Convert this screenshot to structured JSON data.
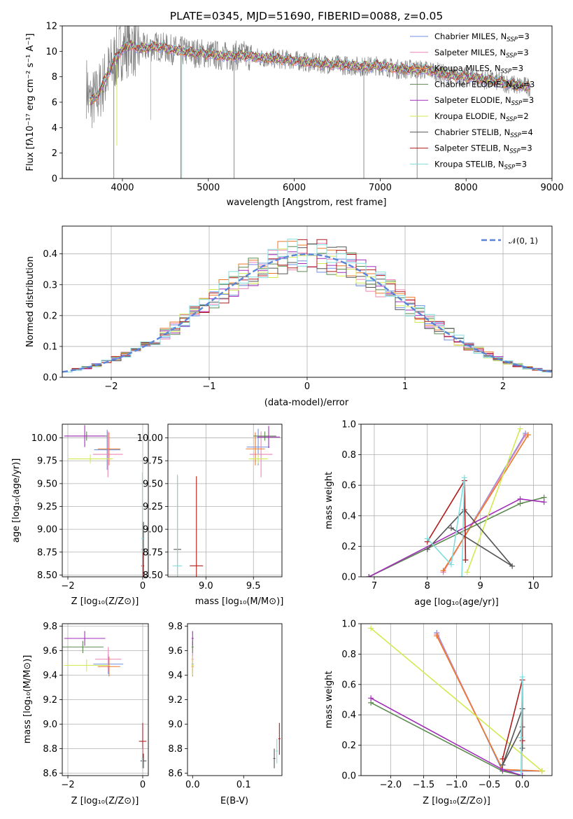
{
  "title": "PLATE=0345, MJD=51690, FIBERID=0088, z=0.05",
  "colors": {
    "Chabrier MILES": "#6f8fe2",
    "Salpeter MILES": "#ec84b6",
    "Kroupa MILES": "#ea7a2a",
    "Chabrier ELODIE": "#5d8a50",
    "Salpeter ELODIE": "#a22db9",
    "Kroupa ELODIE": "#d2ea52",
    "Chabrier STELIB": "#555555",
    "Salpeter STELIB": "#b01c1c",
    "Kroupa STELIB": "#80dede",
    "data": "#808080",
    "grid": "#b0b0b0",
    "normal": "#5b84d8"
  },
  "chart_data": [
    {
      "type": "line",
      "title": "PLATE=0345, MJD=51690, FIBERID=0088, z=0.05",
      "xlabel": "wavelength [Angstrom, rest frame]",
      "ylabel": "Flux [fλ10⁻¹⁷ erg cm⁻² s⁻¹ A⁻¹]",
      "xlim": [
        3300,
        9000
      ],
      "ylim": [
        0,
        12
      ],
      "xticks": [
        4000,
        5000,
        6000,
        7000,
        8000,
        9000
      ],
      "yticks": [
        0,
        2,
        4,
        6,
        8,
        10,
        12
      ],
      "grid": false,
      "legend_position": "top-right",
      "series": [
        {
          "name": "Chabrier MILES",
          "nssp": "3"
        },
        {
          "name": "Salpeter MILES",
          "nssp": "3"
        },
        {
          "name": "Kroupa MILES",
          "nssp": "3"
        },
        {
          "name": "Chabrier ELODIE",
          "nssp": "3"
        },
        {
          "name": "Salpeter ELODIE",
          "nssp": "3"
        },
        {
          "name": "Kroupa ELODIE",
          "nssp": "2"
        },
        {
          "name": "Chabrier STELIB",
          "nssp": "4"
        },
        {
          "name": "Salpeter STELIB",
          "nssp": "3"
        },
        {
          "name": "Kroupa STELIB",
          "nssp": "3"
        }
      ],
      "spectrum_continuum": {
        "x": [
          3600,
          3700,
          3800,
          3900,
          4000,
          4100,
          4200,
          4400,
          4600,
          4800,
          5000,
          5200,
          5400,
          5600,
          5800,
          6000,
          6200,
          6400,
          6600,
          6800,
          7000,
          7200,
          7400,
          7600,
          7800,
          8000,
          8200,
          8400,
          8600,
          8750
        ],
        "y": [
          6.0,
          6.4,
          7.8,
          9.2,
          10.2,
          10.5,
          10.2,
          10.4,
          10.1,
          9.9,
          9.8,
          9.6,
          9.7,
          9.5,
          9.4,
          9.3,
          9.1,
          9.0,
          8.9,
          8.8,
          8.9,
          8.6,
          8.6,
          8.5,
          8.1,
          8.0,
          7.8,
          7.6,
          7.3,
          7.2
        ]
      }
    },
    {
      "type": "line",
      "xlabel": "(data-model)/error",
      "ylabel": "Normed distribution",
      "xlim": [
        -2.5,
        2.5
      ],
      "ylim": [
        0,
        0.49
      ],
      "xticks": [
        -2,
        -1,
        0,
        1,
        2
      ],
      "yticks": [
        0.0,
        0.1,
        0.2,
        0.3,
        0.4
      ],
      "grid": true,
      "legend_position": "top-right",
      "reference": "𝒩(0, 1)",
      "histogram_bins": 50
    },
    {
      "type": "scatter",
      "xlabel": "Z [log₁₀(Z/Z⊙)]",
      "ylabel": "age  [log₁₀(age/yr)]",
      "xlim": [
        -2.15,
        0.15
      ],
      "ylim": [
        8.48,
        10.15
      ],
      "xticks": [
        -2,
        0
      ],
      "yticks": [
        8.5,
        8.75,
        9.0,
        9.25,
        9.5,
        9.75,
        10.0
      ],
      "grid": true
    },
    {
      "type": "scatter",
      "xlabel": "mass [log₁₀(M/M⊙)]",
      "xlim": [
        8.6,
        9.8
      ],
      "ylim": [
        8.48,
        10.15
      ],
      "xticks": [
        9.0,
        9.5
      ],
      "yticks": [
        8.5,
        8.75,
        9.0,
        9.25,
        9.5,
        9.75,
        10.0
      ],
      "grid": true
    },
    {
      "type": "line",
      "xlabel": "age  [log₁₀(age/yr)]",
      "ylabel": "mass weight",
      "xlim": [
        6.75,
        10.35
      ],
      "ylim": [
        0,
        1
      ],
      "xticks": [
        7,
        8,
        9,
        10
      ],
      "yticks": [
        0.0,
        0.2,
        0.4,
        0.6,
        0.8,
        1.0
      ],
      "grid": true,
      "series": [
        {
          "name": "Chabrier MILES",
          "x": [
            8.3,
            9.85
          ],
          "y": [
            0.03,
            0.94
          ]
        },
        {
          "name": "Salpeter MILES",
          "x": [
            8.3,
            9.85
          ],
          "y": [
            0.03,
            0.93
          ]
        },
        {
          "name": "Kroupa MILES",
          "x": [
            8.3,
            9.9
          ],
          "y": [
            0.04,
            0.93
          ]
        },
        {
          "name": "Chabrier ELODIE",
          "x": [
            6.9,
            9.75,
            10.2
          ],
          "y": [
            0.0,
            0.48,
            0.52
          ]
        },
        {
          "name": "Salpeter ELODIE",
          "x": [
            6.9,
            9.75,
            10.2
          ],
          "y": [
            0.0,
            0.51,
            0.49
          ]
        },
        {
          "name": "Kroupa ELODIE",
          "x": [
            8.75,
            9.75
          ],
          "y": [
            0.03,
            0.97
          ]
        },
        {
          "name": "Chabrier STELIB",
          "x": [
            8.0,
            8.7,
            9.6,
            8.45
          ],
          "y": [
            0.18,
            0.44,
            0.07,
            0.32
          ]
        },
        {
          "name": "Salpeter STELIB",
          "x": [
            8.0,
            8.7,
            8.72
          ],
          "y": [
            0.23,
            0.63,
            0.11
          ]
        },
        {
          "name": "Kroupa STELIB",
          "x": [
            8.0,
            8.45,
            8.7,
            8.65
          ],
          "y": [
            0.25,
            0.08,
            0.65,
            0.0
          ]
        }
      ]
    },
    {
      "type": "scatter",
      "xlabel": "Z [log₁₀(Z/Z⊙)]",
      "ylabel": "mass [log₁₀(M/M⊙)]",
      "xlim": [
        -2.15,
        0.15
      ],
      "ylim": [
        8.58,
        9.82
      ],
      "xticks": [
        -2,
        0
      ],
      "yticks": [
        8.6,
        8.8,
        9.0,
        9.2,
        9.4,
        9.6,
        9.8
      ],
      "grid": true
    },
    {
      "type": "scatter",
      "xlabel": "E(B-V)",
      "xlim": [
        -0.01,
        0.175
      ],
      "ylim": [
        8.58,
        9.82
      ],
      "xticks": [
        0.0,
        0.1
      ],
      "yticks": [
        8.6,
        8.8,
        9.0,
        9.2,
        9.4,
        9.6,
        9.8
      ],
      "grid": false
    },
    {
      "type": "line",
      "xlabel": "Z [log₁₀(Z/Z⊙)]",
      "ylabel": "mass weight",
      "xlim": [
        -2.45,
        0.45
      ],
      "ylim": [
        0,
        1
      ],
      "xticks": [
        -2.0,
        -1.5,
        -1.0,
        -0.5,
        0.0
      ],
      "yticks": [
        0.0,
        0.2,
        0.4,
        0.6,
        0.8,
        1.0
      ],
      "grid": true,
      "series": [
        {
          "name": "Chabrier MILES",
          "x": [
            -1.3,
            -0.3,
            0.3
          ],
          "y": [
            0.94,
            0.03,
            0.03
          ]
        },
        {
          "name": "Salpeter MILES",
          "x": [
            -1.3,
            -0.3,
            0.3
          ],
          "y": [
            0.93,
            0.04,
            0.03
          ]
        },
        {
          "name": "Kroupa MILES",
          "x": [
            -1.3,
            -0.3,
            0.3
          ],
          "y": [
            0.92,
            0.04,
            0.03
          ]
        },
        {
          "name": "Chabrier ELODIE",
          "x": [
            -2.3,
            -0.3,
            0.0
          ],
          "y": [
            0.48,
            0.03,
            0.0
          ]
        },
        {
          "name": "Salpeter ELODIE",
          "x": [
            -2.3,
            -0.3,
            0.0
          ],
          "y": [
            0.51,
            0.04,
            0.0
          ]
        },
        {
          "name": "Kroupa ELODIE",
          "x": [
            -2.3,
            0.3
          ],
          "y": [
            0.97,
            0.03
          ]
        },
        {
          "name": "Chabrier STELIB",
          "x": [
            -0.3,
            0.0,
            0.0,
            0.0,
            -0.3
          ],
          "y": [
            0.07,
            0.44,
            0.18,
            0.32,
            0.07
          ]
        },
        {
          "name": "Salpeter STELIB",
          "x": [
            -0.3,
            0.0,
            0.0
          ],
          "y": [
            0.11,
            0.63,
            0.23
          ]
        },
        {
          "name": "Kroupa STELIB",
          "x": [
            -0.02,
            0.0,
            -0.02
          ],
          "y": [
            0.0,
            0.65,
            0.25
          ]
        }
      ]
    }
  ]
}
